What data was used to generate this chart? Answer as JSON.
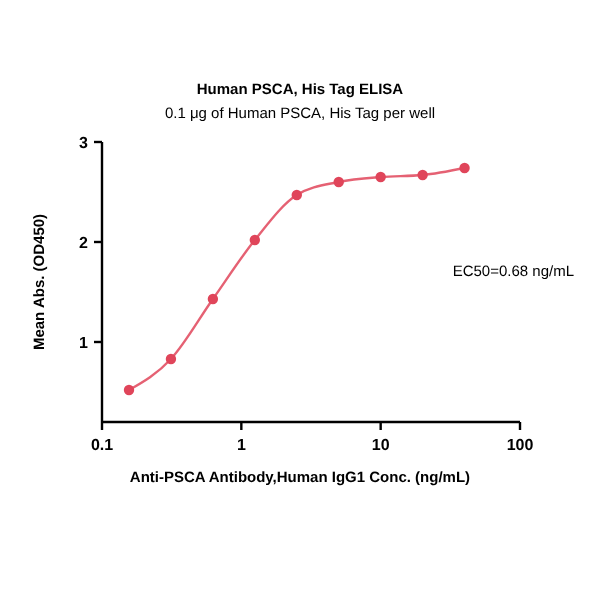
{
  "chart_data": {
    "type": "line",
    "title": "Human PSCA, His Tag ELISA",
    "subtitle": "0.1 μg of Human PSCA, His Tag per well",
    "xlabel": "Anti-PSCA Antibody,Human IgG1 Conc. (ng/mL)",
    "ylabel": "Mean Abs. (OD450)",
    "log": "x",
    "x": [
      0.15625,
      0.3125,
      0.625,
      1.25,
      2.5,
      5,
      10,
      20,
      40
    ],
    "series": [
      {
        "color": "#e0455a",
        "values": [
          0.52,
          0.83,
          1.43,
          2.02,
          2.47,
          2.6,
          2.65,
          2.67,
          2.74
        ]
      }
    ],
    "xlim": [
      0.1,
      100
    ],
    "xticks": [
      0.1,
      1,
      10,
      100
    ],
    "ylim": [
      0.2,
      3
    ],
    "yticks": [
      1,
      2,
      3
    ],
    "marker": "circle",
    "line_style": "solid",
    "grid": false,
    "annotations": [
      "EC50=0.68 ng/mL"
    ]
  }
}
